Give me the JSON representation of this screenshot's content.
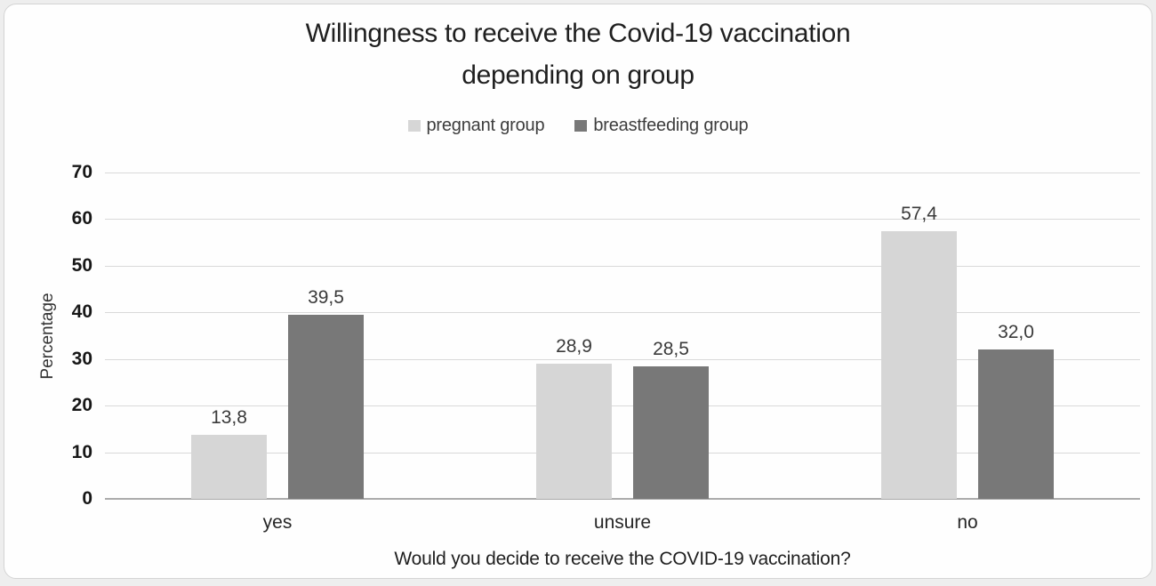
{
  "page": {
    "background_color": "#eeeeee",
    "card_background_color": "#fefefe",
    "card_border_color": "#d4d4d4"
  },
  "chart": {
    "title_lines": [
      "Willingness to receive the Covid-19 vaccination",
      "depending on group"
    ],
    "legend": [
      {
        "label": "pregnant group",
        "color": "#d6d6d6"
      },
      {
        "label": "breastfeeding group",
        "color": "#787878"
      }
    ]
  },
  "chart_data": {
    "type": "bar",
    "title": "Willingness to receive the Covid-19 vaccination depending on group",
    "categories": [
      "yes",
      "unsure",
      "no"
    ],
    "series": [
      {
        "name": "pregnant group",
        "color": "#d6d6d6",
        "values": [
          13.8,
          28.9,
          57.4
        ],
        "labels": [
          "13,8",
          "28,9",
          "57,4"
        ]
      },
      {
        "name": "breastfeeding group",
        "color": "#787878",
        "values": [
          39.5,
          28.5,
          32.0
        ],
        "labels": [
          "39,5",
          "28,5",
          "32,0"
        ]
      }
    ],
    "xlabel": "Would you decide to receive the COVID-19 vaccination?",
    "ylabel": "Percentage",
    "ylim": [
      0,
      70
    ],
    "yticks": [
      0,
      10,
      20,
      30,
      40,
      50,
      60,
      70
    ],
    "ytick_step": 10,
    "grid": "horizontal",
    "gridline_color": "#d9d9d9",
    "baseline_color": "#ababab",
    "legend_position": "top",
    "decimal_separator": ","
  }
}
